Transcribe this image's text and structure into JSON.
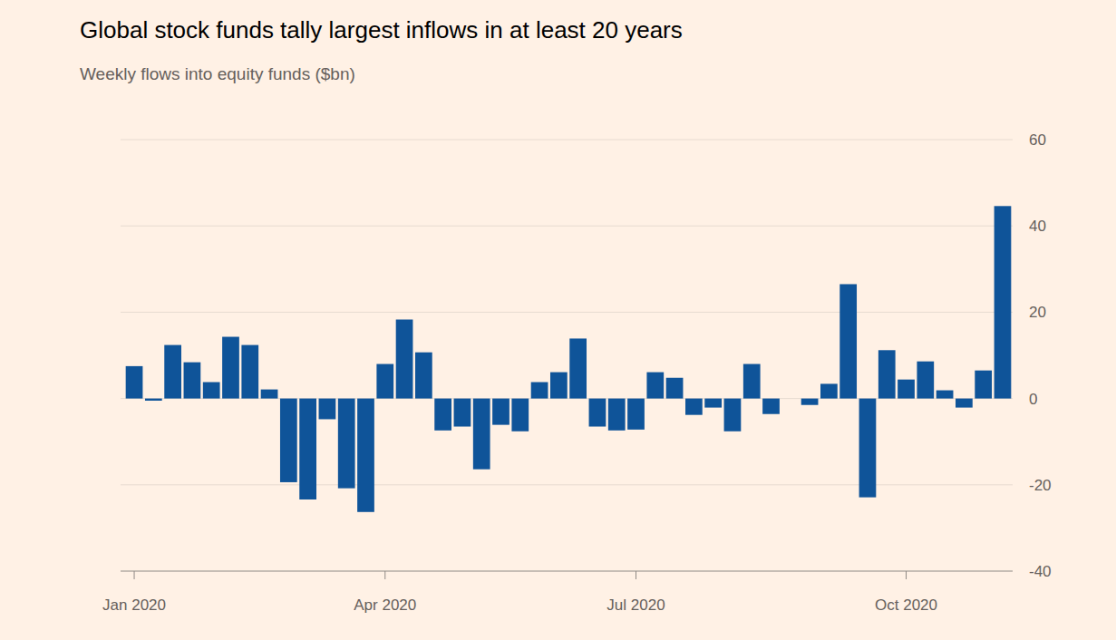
{
  "chart_data": {
    "type": "bar",
    "title": "Global stock funds tally largest inflows in at least 20 years",
    "subtitle": "Weekly flows into equity funds ($bn)",
    "categories": [
      "Jan 2020",
      null,
      null,
      null,
      null,
      null,
      null,
      null,
      null,
      null,
      null,
      null,
      null,
      "Apr 2020",
      null,
      null,
      null,
      null,
      null,
      null,
      null,
      null,
      null,
      null,
      null,
      null,
      "Jul 2020",
      null,
      null,
      null,
      null,
      null,
      null,
      null,
      null,
      null,
      null,
      null,
      null,
      null,
      "Oct 2020",
      null,
      null,
      null,
      null,
      null
    ],
    "values": [
      7.5,
      -0.5,
      12.4,
      8.4,
      3.8,
      14.3,
      12.4,
      2.1,
      -19.4,
      -23.4,
      -4.8,
      -20.8,
      -26.3,
      8,
      18.3,
      10.7,
      -7.4,
      -6.5,
      -16.4,
      -6.1,
      -7.6,
      3.8,
      6.1,
      13.9,
      -6.5,
      -7.4,
      -7.2,
      6.1,
      4.8,
      -3.8,
      -2.1,
      -7.6,
      8,
      -3.6,
      0,
      -1.5,
      3.4,
      26.5,
      -22.9,
      11.2,
      4.4,
      8.6,
      1.9,
      -2.1,
      6.5,
      44.6
    ],
    "color": "#0f5499",
    "ylim": [
      -40,
      60
    ],
    "yticks": [
      -40,
      -20,
      0,
      20,
      40,
      60
    ],
    "grid": true
  }
}
